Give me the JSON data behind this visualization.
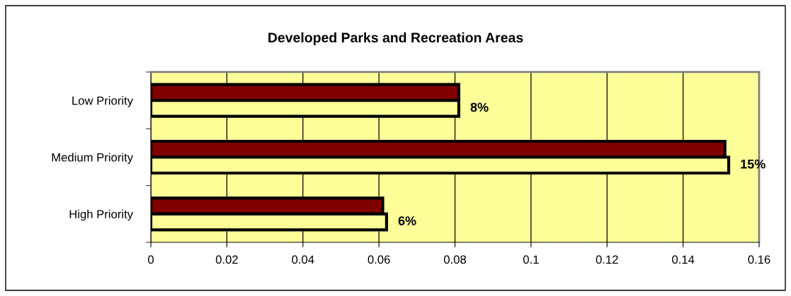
{
  "chart_data": {
    "type": "bar",
    "orientation": "horizontal",
    "title": "Developed Parks and Recreation Areas",
    "categories": [
      "Low Priority",
      "Medium Priority",
      "High Priority"
    ],
    "series": [
      {
        "color": "#800000",
        "values": [
          0.081,
          0.151,
          0.061
        ]
      },
      {
        "color": "#ffff99",
        "values": [
          0.081,
          0.152,
          0.062
        ],
        "value_labels": [
          "8%",
          "15%",
          "6%"
        ]
      }
    ],
    "xlim": [
      0,
      0.16
    ],
    "xticks": [
      0,
      0.02,
      0.04,
      0.06,
      0.08,
      0.1,
      0.12,
      0.14,
      0.16
    ],
    "grid": "x"
  }
}
